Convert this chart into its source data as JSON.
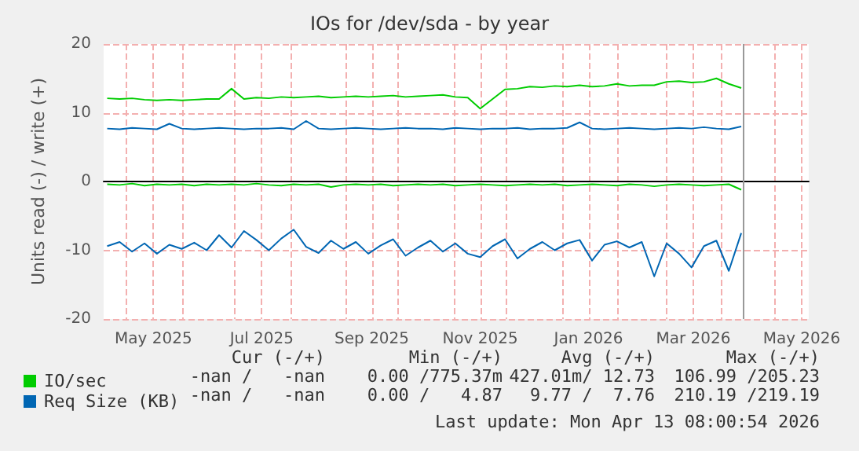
{
  "chart_data": {
    "type": "line",
    "title": "IOs for /dev/sda - by year",
    "ylabel": "Units read (-) / write (+)",
    "x": [
      "2025-04-20",
      "2025-04-27",
      "2025-05-04",
      "2025-05-11",
      "2025-05-18",
      "2025-05-25",
      "2025-06-01",
      "2025-06-08",
      "2025-06-15",
      "2025-06-22",
      "2025-06-29",
      "2025-07-06",
      "2025-07-13",
      "2025-07-20",
      "2025-07-27",
      "2025-08-03",
      "2025-08-10",
      "2025-08-17",
      "2025-08-24",
      "2025-08-31",
      "2025-09-07",
      "2025-09-14",
      "2025-09-21",
      "2025-09-28",
      "2025-10-05",
      "2025-10-12",
      "2025-10-19",
      "2025-10-26",
      "2025-11-02",
      "2025-11-09",
      "2025-11-16",
      "2025-11-23",
      "2025-11-30",
      "2025-12-07",
      "2025-12-14",
      "2025-12-21",
      "2025-12-28",
      "2026-01-04",
      "2026-01-11",
      "2026-01-18",
      "2026-01-25",
      "2026-02-01",
      "2026-02-08",
      "2026-02-15",
      "2026-02-22",
      "2026-03-01",
      "2026-03-08",
      "2026-03-15",
      "2026-03-22",
      "2026-03-29",
      "2026-04-05",
      "2026-04-12"
    ],
    "series": [
      {
        "name": "IO/sec",
        "color": "#00cc00",
        "values": [
          12.1,
          12.0,
          12.1,
          11.9,
          11.8,
          11.9,
          11.8,
          11.9,
          12.0,
          12.0,
          13.5,
          12.0,
          12.2,
          12.1,
          12.3,
          12.2,
          12.3,
          12.4,
          12.2,
          12.3,
          12.4,
          12.3,
          12.4,
          12.5,
          12.3,
          12.4,
          12.5,
          12.6,
          12.3,
          12.2,
          10.6,
          12.0,
          13.4,
          13.5,
          13.8,
          13.7,
          13.9,
          13.8,
          14.0,
          13.8,
          13.9,
          14.2,
          13.9,
          14.0,
          14.0,
          14.5,
          14.6,
          14.4,
          14.5,
          15.0,
          14.2,
          13.6
        ]
      },
      {
        "color": "#00cc00",
        "values": [
          -0.4,
          -0.5,
          -0.3,
          -0.6,
          -0.4,
          -0.5,
          -0.4,
          -0.6,
          -0.4,
          -0.5,
          -0.4,
          -0.5,
          -0.3,
          -0.5,
          -0.6,
          -0.4,
          -0.5,
          -0.4,
          -0.8,
          -0.5,
          -0.4,
          -0.5,
          -0.4,
          -0.6,
          -0.5,
          -0.4,
          -0.5,
          -0.4,
          -0.6,
          -0.5,
          -0.4,
          -0.5,
          -0.6,
          -0.5,
          -0.4,
          -0.5,
          -0.4,
          -0.6,
          -0.5,
          -0.4,
          -0.5,
          -0.6,
          -0.4,
          -0.5,
          -0.7,
          -0.5,
          -0.4,
          -0.5,
          -0.6,
          -0.5,
          -0.4,
          -1.2
        ]
      },
      {
        "name": "Req Size (KB)",
        "color": "#0066b3",
        "values": [
          7.7,
          7.6,
          7.8,
          7.7,
          7.6,
          8.4,
          7.7,
          7.6,
          7.7,
          7.8,
          7.7,
          7.6,
          7.7,
          7.7,
          7.8,
          7.6,
          8.8,
          7.7,
          7.6,
          7.7,
          7.8,
          7.7,
          7.6,
          7.7,
          7.8,
          7.7,
          7.7,
          7.6,
          7.8,
          7.7,
          7.6,
          7.7,
          7.7,
          7.8,
          7.6,
          7.7,
          7.7,
          7.8,
          8.6,
          7.7,
          7.6,
          7.7,
          7.8,
          7.7,
          7.6,
          7.7,
          7.8,
          7.7,
          7.9,
          7.7,
          7.6,
          8.0
        ]
      },
      {
        "color": "#0066b3",
        "values": [
          -9.4,
          -8.8,
          -10.2,
          -9.0,
          -10.5,
          -9.2,
          -9.8,
          -8.9,
          -10.0,
          -7.8,
          -9.6,
          -7.2,
          -8.5,
          -10.0,
          -8.3,
          -7.0,
          -9.5,
          -10.4,
          -8.6,
          -9.8,
          -8.8,
          -10.5,
          -9.3,
          -8.4,
          -10.8,
          -9.6,
          -8.6,
          -10.2,
          -9.0,
          -10.5,
          -11.0,
          -9.4,
          -8.4,
          -11.2,
          -9.8,
          -8.8,
          -10.0,
          -9.0,
          -8.5,
          -11.5,
          -9.2,
          -8.7,
          -9.6,
          -8.8,
          -13.8,
          -9.0,
          -10.5,
          -12.5,
          -9.4,
          -8.6,
          -13.0,
          -7.5
        ]
      }
    ],
    "xlim": [
      "2025-04-18",
      "2026-05-20"
    ],
    "xticks": [
      {
        "value": "2025-05-01",
        "label": null
      },
      {
        "value": "2025-05-16",
        "label": "May 2025"
      },
      {
        "value": "2025-06-01",
        "label": null
      },
      {
        "value": "2025-07-01",
        "label": null
      },
      {
        "value": "2025-07-16",
        "label": "Jul 2025"
      },
      {
        "value": "2025-08-01",
        "label": null
      },
      {
        "value": "2025-09-01",
        "label": null
      },
      {
        "value": "2025-09-16",
        "label": "Sep 2025"
      },
      {
        "value": "2025-10-01",
        "label": null
      },
      {
        "value": "2025-11-01",
        "label": null
      },
      {
        "value": "2025-11-16",
        "label": "Nov 2025"
      },
      {
        "value": "2025-12-01",
        "label": null
      },
      {
        "value": "2026-01-01",
        "label": null
      },
      {
        "value": "2026-01-16",
        "label": "Jan 2026"
      },
      {
        "value": "2026-02-01",
        "label": null
      },
      {
        "value": "2026-03-01",
        "label": null
      },
      {
        "value": "2026-03-16",
        "label": "Mar 2026"
      },
      {
        "value": "2026-04-01",
        "label": null
      },
      {
        "value": "2026-05-01",
        "label": null
      },
      {
        "value": "2026-05-16",
        "label": "May 2026"
      }
    ],
    "ylim": [
      -20,
      20
    ],
    "yticks": [
      -20,
      -10,
      0,
      10,
      20
    ],
    "grid": true,
    "legend": "bottom left",
    "marker": "none",
    "line_style": "solid",
    "ref_lines": [
      {
        "axis": "x",
        "value": "2026-04-13",
        "color": "#999999"
      }
    ],
    "annotations": [
      "Cur (-/+)",
      "Min (-/+)",
      "Avg (-/+)",
      "Max (-/+)",
      "-nan /   -nan",
      "0.00 /775.37m",
      "427.01m/ 12.73",
      "106.99 /205.23",
      "-nan /   -nan",
      "0.00 /   4.87",
      "9.77 /  7.76",
      "210.19 /219.19",
      "Last update: Mon Apr 13 08:00:54 2026"
    ]
  }
}
